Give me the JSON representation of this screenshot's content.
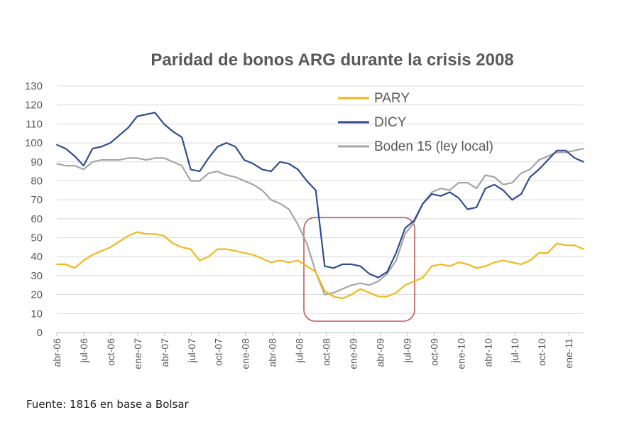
{
  "source": "Fuente: 1816 en base a Bolsar",
  "chart_data": {
    "type": "line",
    "title": "Paridad de bonos ARG durante la crisis 2008",
    "xlabel": "",
    "ylabel": "",
    "ylim": [
      0,
      130
    ],
    "yticks": [
      0,
      10,
      20,
      30,
      40,
      50,
      60,
      70,
      80,
      90,
      100,
      110,
      120,
      130
    ],
    "xtick_labels": [
      "abr-06",
      "jul-06",
      "oct-06",
      "ene-07",
      "abr-07",
      "jul-07",
      "oct-07",
      "ene-08",
      "abr-08",
      "jul-08",
      "oct-08",
      "ene-09",
      "abr-09",
      "jul-09",
      "oct-09",
      "ene-10",
      "abr-10",
      "jul-10",
      "oct-10",
      "ene-11"
    ],
    "grid": true,
    "legend_position": "top-right",
    "highlight": "crisis oct-08 to jul-09 (rounded rectangle)",
    "x": [
      "abr-06",
      "may-06",
      "jun-06",
      "jul-06",
      "ago-06",
      "sep-06",
      "oct-06",
      "nov-06",
      "dic-06",
      "ene-07",
      "feb-07",
      "mar-07",
      "abr-07",
      "may-07",
      "jun-07",
      "jul-07",
      "ago-07",
      "sep-07",
      "oct-07",
      "nov-07",
      "dic-07",
      "ene-08",
      "feb-08",
      "mar-08",
      "abr-08",
      "may-08",
      "jun-08",
      "jul-08",
      "ago-08",
      "sep-08",
      "oct-08",
      "nov-08",
      "dic-08",
      "ene-09",
      "feb-09",
      "mar-09",
      "abr-09",
      "may-09",
      "jun-09",
      "jul-09",
      "ago-09",
      "sep-09",
      "oct-09",
      "nov-09",
      "dic-09",
      "ene-10",
      "feb-10",
      "mar-10",
      "abr-10",
      "may-10",
      "jun-10",
      "jul-10",
      "ago-10",
      "sep-10",
      "oct-10",
      "nov-10",
      "dic-10",
      "ene-11",
      "feb-11",
      "mar-11"
    ],
    "series": [
      {
        "name": "PARY",
        "color": "#F2B81B",
        "values": [
          36,
          36,
          34,
          38,
          41,
          43,
          45,
          48,
          51,
          53,
          52,
          52,
          51,
          47,
          45,
          44,
          38,
          40,
          44,
          44,
          43,
          42,
          41,
          39,
          37,
          38,
          37,
          38,
          35,
          32,
          22,
          19,
          18,
          20,
          23,
          21,
          19,
          19,
          21,
          25,
          27,
          29,
          35,
          36,
          35,
          37,
          36,
          34,
          35,
          37,
          38,
          37,
          36,
          38,
          42,
          42,
          47,
          46,
          46,
          44
        ]
      },
      {
        "name": "DICY",
        "color": "#2F4D91",
        "values": [
          99,
          97,
          93,
          88,
          97,
          98,
          100,
          104,
          108,
          114,
          115,
          116,
          110,
          106,
          103,
          86,
          85,
          92,
          98,
          100,
          98,
          91,
          89,
          86,
          85,
          90,
          89,
          86,
          80,
          75,
          35,
          34,
          36,
          36,
          35,
          31,
          29,
          32,
          42,
          55,
          59,
          68,
          73,
          72,
          74,
          71,
          65,
          66,
          76,
          78,
          75,
          70,
          73,
          82,
          86,
          91,
          96,
          96,
          92,
          90
        ]
      },
      {
        "name": "Boden 15 (ley local)",
        "color": "#A5A5A5",
        "values": [
          89,
          88,
          88,
          86,
          90,
          91,
          91,
          91,
          92,
          92,
          91,
          92,
          92,
          90,
          88,
          80,
          80,
          84,
          85,
          83,
          82,
          80,
          78,
          75,
          70,
          68,
          65,
          57,
          47,
          32,
          20,
          21,
          23,
          25,
          26,
          25,
          27,
          31,
          38,
          52,
          58,
          68,
          74,
          76,
          75,
          79,
          79,
          76,
          83,
          82,
          78,
          79,
          84,
          86,
          91,
          93,
          95,
          95,
          96,
          97
        ]
      }
    ]
  }
}
